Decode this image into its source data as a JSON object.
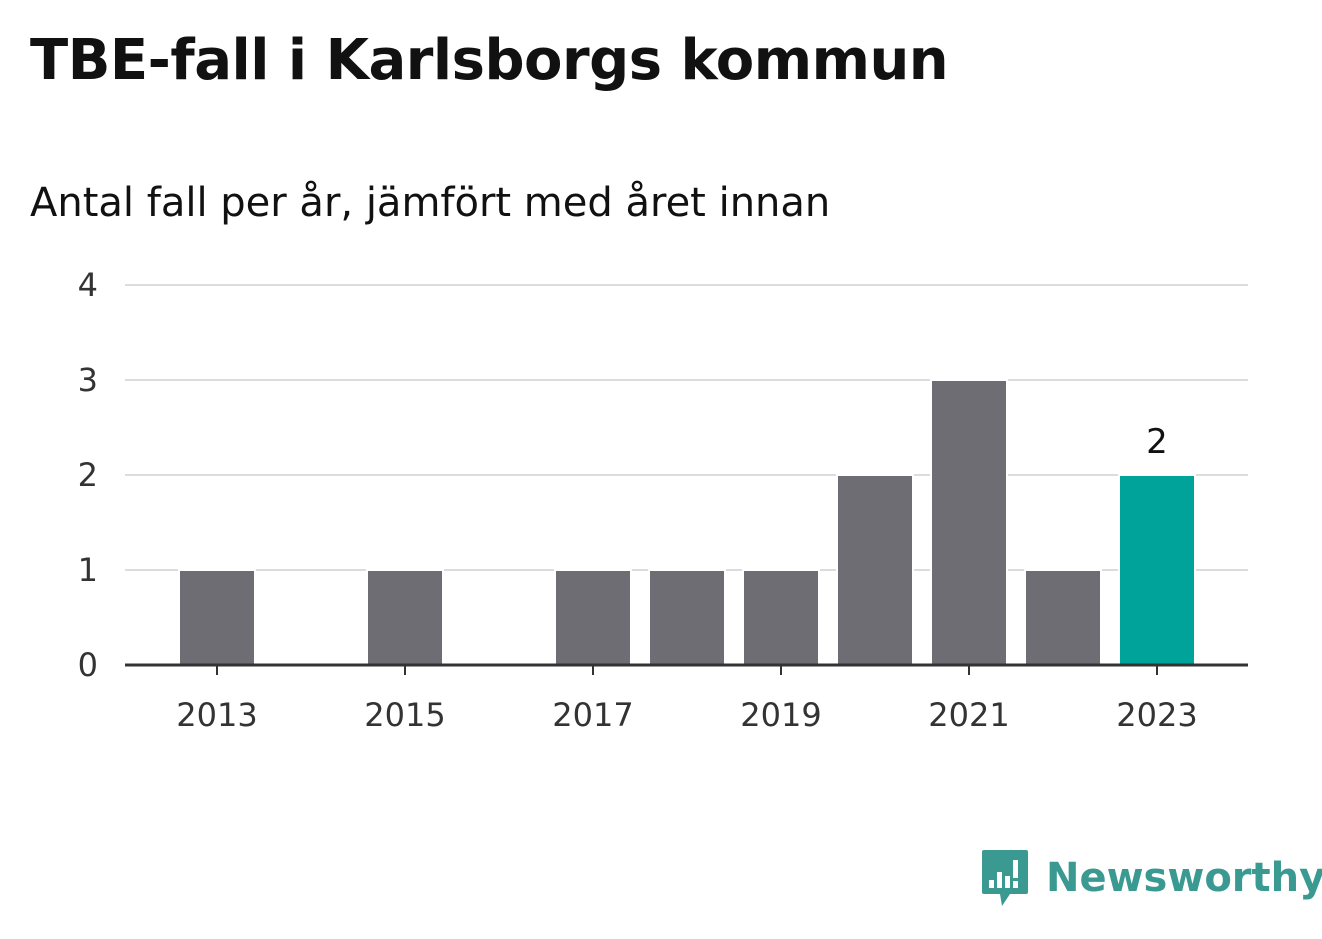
{
  "title": "TBE-fall i Karlsborgs kommun",
  "subtitle": "Antal fall per år, jämfört med året innan",
  "brand": {
    "name": "Newsworthy",
    "color": "#3a9a92",
    "icon": "bar-chart-speech-bubble-icon"
  },
  "chart_data": {
    "type": "bar",
    "title": "TBE-fall i Karlsborgs kommun",
    "subtitle": "Antal fall per år, jämfört med året innan",
    "categories": [
      "2013",
      "2014",
      "2015",
      "2016",
      "2017",
      "2018",
      "2019",
      "2020",
      "2021",
      "2022",
      "2023"
    ],
    "values": [
      1,
      0,
      1,
      0,
      1,
      1,
      1,
      2,
      3,
      1,
      2
    ],
    "x_tick_labels": [
      "2013",
      "2015",
      "2017",
      "2019",
      "2021",
      "2023"
    ],
    "y_ticks": [
      0,
      1,
      2,
      3,
      4
    ],
    "ylim": [
      0,
      4
    ],
    "grid": true,
    "bar_color": "#6e6d73",
    "highlight_color": "#00a39a",
    "highlight_index": 10,
    "value_labels": [
      {
        "index": 10,
        "text": "2"
      }
    ]
  }
}
